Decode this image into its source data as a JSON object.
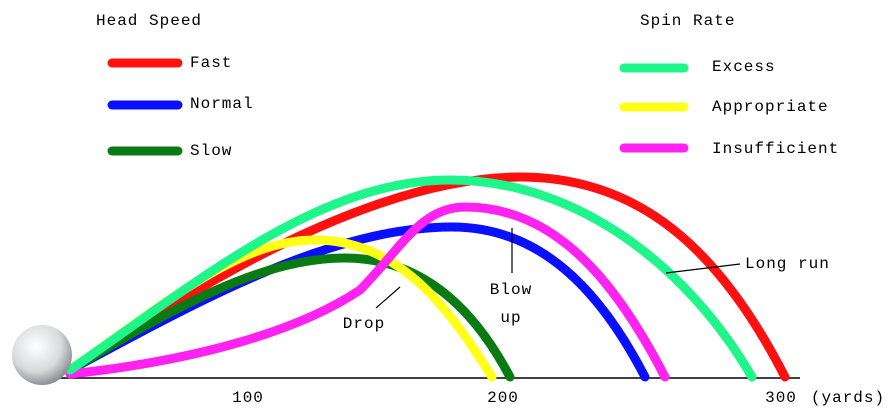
{
  "legend_left": {
    "title": "Head Speed",
    "items": [
      "Fast",
      "Normal",
      "Slow"
    ]
  },
  "legend_right": {
    "title": "Spin Rate",
    "items": [
      "Excess",
      "Appropriate",
      "Insufficient"
    ]
  },
  "annotations": {
    "long_run": "Long run",
    "blow_up": [
      "Blow",
      "up"
    ],
    "drop": "Drop"
  },
  "axis": {
    "ticks": [
      "100",
      "200",
      "300"
    ],
    "unit": "(yards)"
  }
}
